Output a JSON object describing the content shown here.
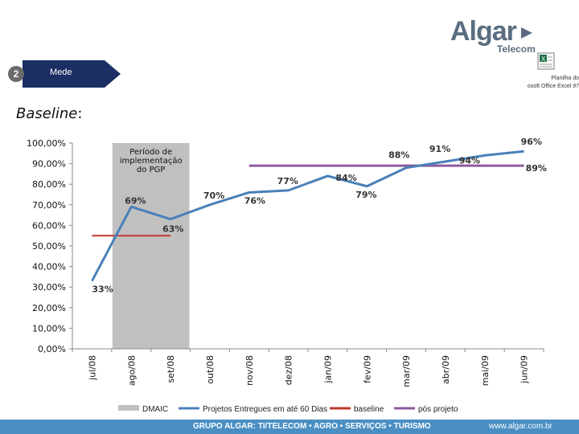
{
  "brand": {
    "name": "Algar",
    "sub": "Telecom"
  },
  "step": {
    "number": "2",
    "label": "Mede"
  },
  "heading": {
    "italic": "Baseline",
    "colon": ":"
  },
  "attachment": {
    "caption": "Planilha do\nosoft Office Excel 97",
    "icon": "excel-icon"
  },
  "footer": {
    "left": "GRUPO ALGAR: TI/TELECOM • AGRO • SERVIÇOS • TURISMO",
    "right": "www.algar.com.br"
  },
  "colors": {
    "line": "#4a80b9",
    "baseline": "#c0392b",
    "pos": "#8e5a9e",
    "dmaic": "#c0c0c0",
    "footer": "#4a8fc3"
  },
  "chart_data": {
    "type": "line",
    "categories": [
      "jul/08",
      "ago/08",
      "set/08",
      "out/08",
      "nov/08",
      "dez/08",
      "jan/09",
      "fev/09",
      "mar/09",
      "abr/09",
      "mai/09",
      "jun/09"
    ],
    "ylim": [
      0,
      100
    ],
    "yticks": [
      "0,00%",
      "10,00%",
      "20,00%",
      "30,00%",
      "40,00%",
      "50,00%",
      "60,00%",
      "70,00%",
      "80,00%",
      "90,00%",
      "100,00%"
    ],
    "annotation": "Período de implementação do PGP",
    "dmaic_range": [
      "ago/08",
      "set/08"
    ],
    "series": [
      {
        "name": "Projetos Entregues em até 60 Dias",
        "values": [
          33,
          69,
          63,
          70,
          76,
          77,
          84,
          79,
          88,
          91,
          94,
          96
        ],
        "labels": [
          "33%",
          "69%",
          "63%",
          "70%",
          "76%",
          "77%",
          "84%",
          "79%",
          "88%",
          "91%",
          "94%",
          "96%"
        ]
      },
      {
        "name": "baseline",
        "value": 55,
        "range": [
          "jul/08",
          "set/08"
        ]
      },
      {
        "name": "pós projeto",
        "value": 89,
        "range": [
          "nov/08",
          "jun/09"
        ],
        "label": "89%"
      }
    ],
    "legend": [
      "DMAIC",
      "Projetos Entregues em até 60 Dias",
      "baseline",
      "pós projeto"
    ]
  }
}
